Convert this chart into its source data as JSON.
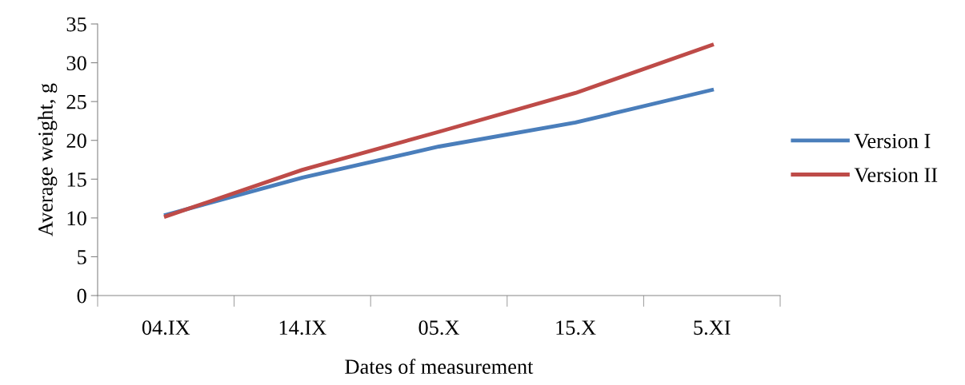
{
  "chart_data": {
    "type": "line",
    "xlabel": "Dates of measurement",
    "ylabel": "Average weight, g",
    "categories": [
      "04.IX",
      "14.IX",
      "05.X",
      "15.X",
      "5.XI"
    ],
    "series": [
      {
        "name": "Version I",
        "color": "#4a7ebb",
        "values": [
          10.4,
          15.2,
          19.2,
          22.3,
          26.5
        ]
      },
      {
        "name": "Version II",
        "color": "#be4b48",
        "values": [
          10.2,
          16.2,
          21.1,
          26.1,
          32.3
        ]
      }
    ],
    "ylim": [
      0,
      35
    ],
    "yticks": [
      0,
      5,
      10,
      15,
      20,
      25,
      30,
      35
    ],
    "grid": false,
    "legend": "right",
    "marker": "none",
    "line_style": "solid"
  }
}
